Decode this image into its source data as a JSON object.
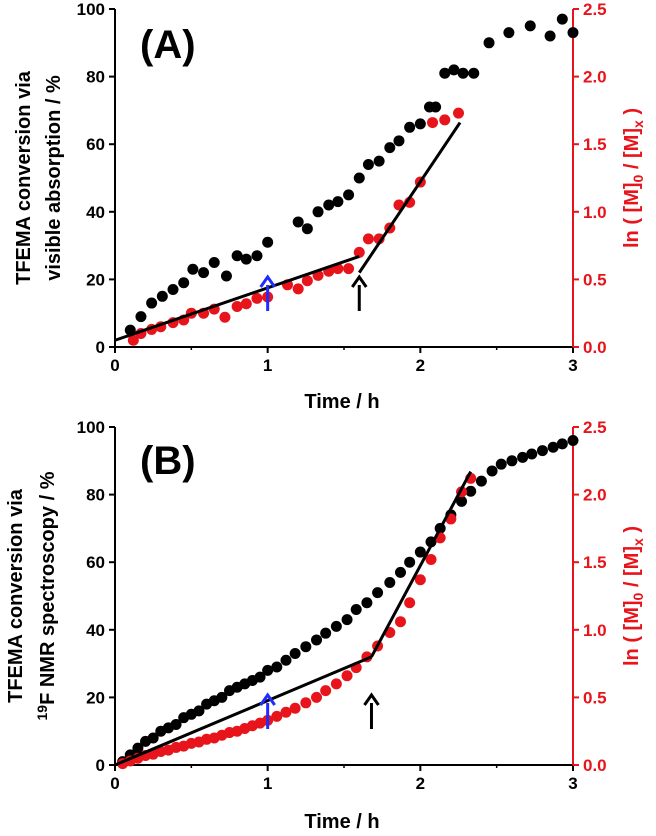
{
  "colors": {
    "black": "#000000",
    "red": "#e8141b",
    "blue": "#1f2bff",
    "axis_red": "#e8141b"
  },
  "chart_data": [
    {
      "type": "scatter",
      "panel_label": "(A)",
      "xlabel": "Time / h",
      "ylabel_left_line1": "TFEMA conversion via",
      "ylabel_left_line2": "visible absorption / %",
      "ylabel_right": "ln ( [M]0 / [M]x )",
      "xlim": [
        0,
        3
      ],
      "ylim_left": [
        0,
        100
      ],
      "ylim_right": [
        0,
        2.5
      ],
      "x_ticks": [
        "0",
        "1",
        "2",
        "3"
      ],
      "y_left_ticks": [
        "0",
        "20",
        "40",
        "60",
        "80",
        "100"
      ],
      "y_right_ticks": [
        "0.0",
        "0.5",
        "1.0",
        "1.5",
        "2.0",
        "2.5"
      ],
      "series": [
        {
          "name": "TFEMA conversion (visible absorption)",
          "axis": "left",
          "color": "black",
          "x": [
            0.1,
            0.17,
            0.24,
            0.31,
            0.38,
            0.45,
            0.51,
            0.58,
            0.65,
            0.73,
            0.8,
            0.86,
            0.93,
            1.0,
            1.2,
            1.26,
            1.33,
            1.4,
            1.46,
            1.53,
            1.6,
            1.66,
            1.73,
            1.8,
            1.86,
            1.93,
            2.0,
            2.06,
            2.1,
            2.16,
            2.22,
            2.28,
            2.35,
            2.45,
            2.58,
            2.72,
            2.85,
            2.93,
            3.0
          ],
          "y": [
            5,
            9,
            13,
            15,
            17,
            19,
            23,
            22,
            25,
            21,
            27,
            26,
            27,
            31,
            37,
            35,
            40,
            42,
            43,
            45,
            50,
            54,
            55,
            59,
            61,
            65,
            66,
            71,
            71,
            81,
            82,
            81,
            81,
            90,
            93,
            95,
            92,
            97,
            93
          ]
        },
        {
          "name": "ln([M]0/[M]x) (visible absorption)",
          "axis": "right",
          "color": "red",
          "x": [
            0.12,
            0.17,
            0.24,
            0.3,
            0.38,
            0.45,
            0.5,
            0.58,
            0.65,
            0.72,
            0.8,
            0.86,
            0.93,
            1.0,
            1.13,
            1.2,
            1.26,
            1.33,
            1.4,
            1.46,
            1.53,
            1.6,
            1.66,
            1.73,
            1.8,
            1.86,
            1.93,
            2.0,
            2.08,
            2.16,
            2.25
          ],
          "y": [
            0.05,
            0.1,
            0.13,
            0.15,
            0.18,
            0.2,
            0.25,
            0.25,
            0.28,
            0.22,
            0.3,
            0.32,
            0.36,
            0.37,
            0.46,
            0.43,
            0.49,
            0.53,
            0.56,
            0.58,
            0.58,
            0.7,
            0.8,
            0.8,
            0.88,
            1.05,
            1.07,
            1.22,
            1.66,
            1.68,
            1.73
          ]
        }
      ],
      "fit_lines": [
        {
          "name": "fit1",
          "axis": "right",
          "x": [
            0,
            1.6
          ],
          "y": [
            0.05,
            0.67
          ]
        },
        {
          "name": "fit2",
          "axis": "right",
          "x": [
            1.6,
            2.26
          ],
          "y": [
            0.55,
            1.66
          ]
        }
      ],
      "arrows": [
        {
          "name": "blue-arrow",
          "color": "blue",
          "x": 1.0
        },
        {
          "name": "black-arrow",
          "color": "black",
          "x": 1.6
        }
      ]
    },
    {
      "type": "scatter",
      "panel_label": "(B)",
      "xlabel": "Time / h",
      "ylabel_left_line1": "TFEMA conversion via",
      "ylabel_left_line2": "19F NMR spectroscopy / %",
      "ylabel_right": "ln ( [M]0 / [M]x )",
      "xlim": [
        0,
        3
      ],
      "ylim_left": [
        0,
        100
      ],
      "ylim_right": [
        0,
        2.5
      ],
      "x_ticks": [
        "0",
        "1",
        "2",
        "3"
      ],
      "y_left_ticks": [
        "0",
        "20",
        "40",
        "60",
        "80",
        "100"
      ],
      "y_right_ticks": [
        "0.0",
        "0.5",
        "1.0",
        "1.5",
        "2.0",
        "2.5"
      ],
      "series": [
        {
          "name": "TFEMA conversion (19F NMR)",
          "axis": "left",
          "color": "black",
          "x": [
            0.05,
            0.1,
            0.15,
            0.2,
            0.25,
            0.3,
            0.35,
            0.4,
            0.45,
            0.5,
            0.55,
            0.6,
            0.65,
            0.7,
            0.75,
            0.8,
            0.85,
            0.9,
            0.95,
            1.0,
            1.06,
            1.12,
            1.18,
            1.25,
            1.32,
            1.38,
            1.45,
            1.52,
            1.58,
            1.65,
            1.72,
            1.8,
            1.87,
            1.93,
            2.0,
            2.07,
            2.13,
            2.2,
            2.27,
            2.33,
            2.4,
            2.47,
            2.53,
            2.6,
            2.67,
            2.73,
            2.8,
            2.87,
            2.93,
            3.0
          ],
          "y": [
            1,
            3,
            5,
            7,
            8,
            10,
            11,
            12,
            14,
            15,
            16,
            18,
            19,
            20,
            22,
            23,
            24,
            25,
            26,
            28,
            29,
            31,
            33,
            35,
            37,
            39,
            41,
            43,
            46,
            48,
            51,
            54,
            57,
            60,
            63,
            66,
            70,
            74,
            78,
            81,
            84,
            87,
            89,
            90,
            91,
            92,
            93,
            94,
            95,
            96
          ]
        },
        {
          "name": "ln([M]0/[M]x) (19F NMR)",
          "axis": "right",
          "color": "red",
          "x": [
            0.05,
            0.1,
            0.15,
            0.2,
            0.25,
            0.3,
            0.35,
            0.4,
            0.45,
            0.5,
            0.55,
            0.6,
            0.65,
            0.7,
            0.75,
            0.8,
            0.85,
            0.9,
            0.95,
            1.0,
            1.06,
            1.12,
            1.18,
            1.25,
            1.32,
            1.38,
            1.45,
            1.52,
            1.58,
            1.65,
            1.72,
            1.8,
            1.87,
            1.93,
            2.0,
            2.07,
            2.13,
            2.2,
            2.27,
            2.33
          ],
          "y": [
            0.01,
            0.03,
            0.05,
            0.07,
            0.08,
            0.1,
            0.11,
            0.13,
            0.14,
            0.16,
            0.17,
            0.19,
            0.2,
            0.22,
            0.24,
            0.25,
            0.27,
            0.29,
            0.31,
            0.33,
            0.36,
            0.39,
            0.42,
            0.46,
            0.5,
            0.55,
            0.6,
            0.66,
            0.72,
            0.8,
            0.88,
            0.98,
            1.06,
            1.2,
            1.37,
            1.52,
            1.68,
            1.82,
            2.02,
            2.12
          ]
        }
      ],
      "fit_lines": [
        {
          "name": "fit1",
          "axis": "right",
          "x": [
            0,
            1.68
          ],
          "y": [
            0.0,
            0.8
          ]
        },
        {
          "name": "fit2",
          "axis": "right",
          "x": [
            1.68,
            2.33
          ],
          "y": [
            0.8,
            2.17
          ]
        }
      ],
      "arrows": [
        {
          "name": "blue-arrow",
          "color": "blue",
          "x": 1.0
        },
        {
          "name": "black-arrow",
          "color": "black",
          "x": 1.68
        }
      ]
    }
  ]
}
